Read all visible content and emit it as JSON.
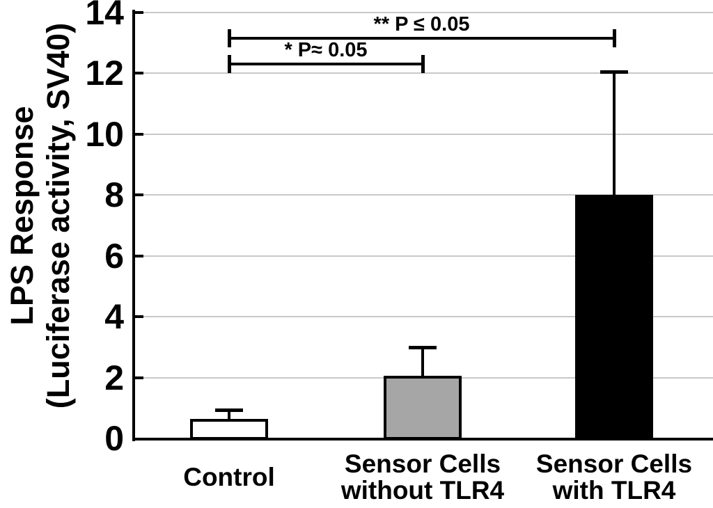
{
  "figure": {
    "background": "#ffffff",
    "text_color": "#000000"
  },
  "chart_data": {
    "type": "bar",
    "title": "",
    "ylabel_lines": [
      "LPS Response",
      "(Luciferase activity, SV40)"
    ],
    "xlabel": "",
    "categories": [
      [
        "Control"
      ],
      [
        "Sensor Cells",
        "without TLR4"
      ],
      [
        "Sensor Cells",
        "with TLR4"
      ]
    ],
    "values": [
      0.65,
      2.05,
      8.0
    ],
    "error_bar_tops": [
      0.93,
      3.0,
      12.05
    ],
    "bar_fills": [
      "#ffffff",
      "#a6a6a6",
      "#000000"
    ],
    "bar_border_color": "#000000",
    "ylim": [
      0,
      14
    ],
    "yticks": [
      0,
      2,
      4,
      6,
      8,
      10,
      12,
      14
    ],
    "grid": true,
    "gridline_color": "#c8c8c8",
    "legend": "none",
    "annotations": [
      {
        "label": "** P ≤ 0.05",
        "from_bar": 0,
        "to_bar": 2
      },
      {
        "label": "* P≈ 0.05",
        "from_bar": 0,
        "to_bar": 1
      }
    ]
  }
}
